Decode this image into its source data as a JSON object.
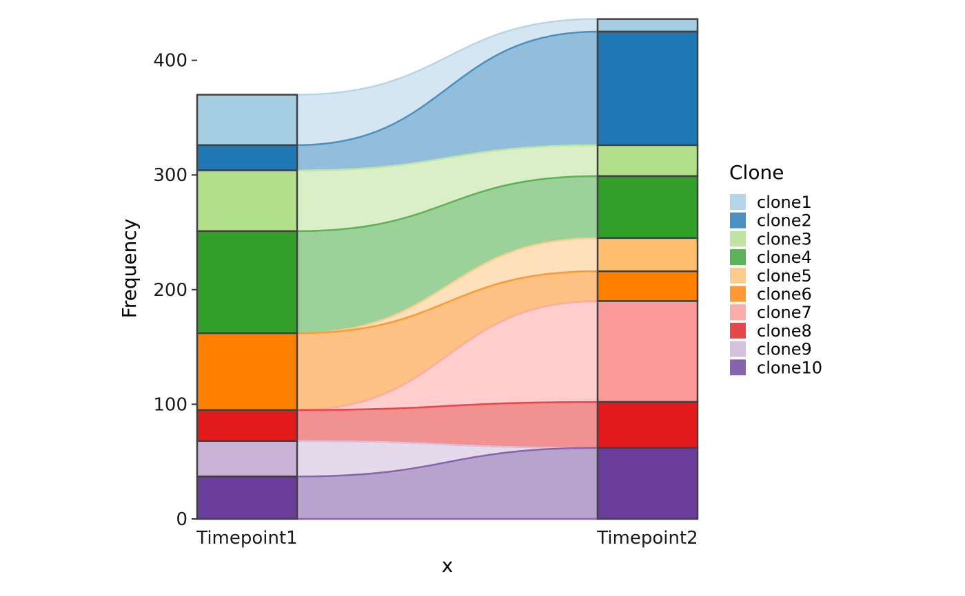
{
  "chart_data": {
    "type": "alluvial",
    "xlabel": "x",
    "ylabel": "Frequency",
    "categories": [
      "Timepoint1",
      "Timepoint2"
    ],
    "ylim": [
      0,
      437
    ],
    "yticks": [
      0,
      100,
      200,
      300,
      400
    ],
    "legend": {
      "title": "Clone",
      "position": "right"
    },
    "series": [
      {
        "name": "clone1",
        "values": [
          44,
          11
        ],
        "bar_color": "#A6CEE3",
        "flow_color": "#B5D6E8"
      },
      {
        "name": "clone2",
        "values": [
          22,
          99
        ],
        "bar_color": "#1F78B4",
        "flow_color": "#4A91C3"
      },
      {
        "name": "clone3",
        "values": [
          53,
          27
        ],
        "bar_color": "#B2DF8A",
        "flow_color": "#C1E5A1"
      },
      {
        "name": "clone4",
        "values": [
          89,
          54
        ],
        "bar_color": "#33A02C",
        "flow_color": "#5CB357"
      },
      {
        "name": "clone5",
        "values": [
          0,
          29
        ],
        "bar_color": "#FDBF6F",
        "flow_color": "#FDCB8C"
      },
      {
        "name": "clone6",
        "values": [
          67,
          26
        ],
        "bar_color": "#FF7F00",
        "flow_color": "#FF9933"
      },
      {
        "name": "clone7",
        "values": [
          0,
          88
        ],
        "bar_color": "#FB9A99",
        "flow_color": "#FBADAC"
      },
      {
        "name": "clone8",
        "values": [
          27,
          40
        ],
        "bar_color": "#E31A1C",
        "flow_color": "#E84749"
      },
      {
        "name": "clone9",
        "values": [
          31,
          0
        ],
        "bar_color": "#CAB2D6",
        "flow_color": "#D4C1DE"
      },
      {
        "name": "clone10",
        "values": [
          37,
          62
        ],
        "bar_color": "#6A3D9A",
        "flow_color": "#8864AE"
      }
    ]
  }
}
